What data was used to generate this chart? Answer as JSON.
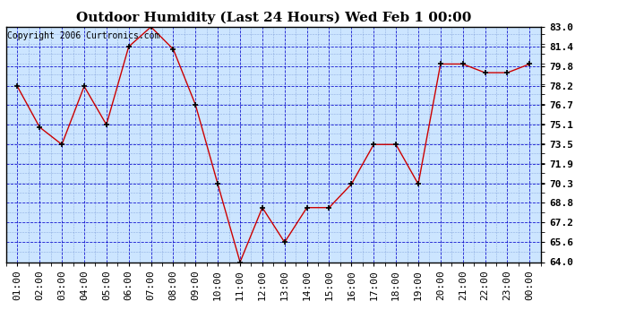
{
  "title": "Outdoor Humidity (Last 24 Hours) Wed Feb 1 00:00",
  "copyright": "Copyright 2006 Curtronics.com",
  "x_labels": [
    "01:00",
    "02:00",
    "03:00",
    "04:00",
    "05:00",
    "06:00",
    "07:00",
    "08:00",
    "09:00",
    "10:00",
    "11:00",
    "12:00",
    "13:00",
    "14:00",
    "15:00",
    "16:00",
    "17:00",
    "18:00",
    "19:00",
    "20:00",
    "21:00",
    "22:00",
    "23:00",
    "00:00"
  ],
  "y_values": [
    78.2,
    74.9,
    73.5,
    78.2,
    75.1,
    81.4,
    83.0,
    81.2,
    76.7,
    70.3,
    64.0,
    68.4,
    65.6,
    68.4,
    68.4,
    70.3,
    73.5,
    73.5,
    70.3,
    80.0,
    80.0,
    79.3,
    79.3,
    80.0
  ],
  "y_tick_values": [
    64.0,
    65.6,
    67.2,
    68.8,
    70.3,
    71.9,
    73.5,
    75.1,
    76.7,
    78.2,
    79.8,
    81.4,
    83.0
  ],
  "y_min": 64.0,
  "y_max": 83.0,
  "line_color": "#cc0000",
  "marker_color": "#000000",
  "bg_color": "#cce5ff",
  "grid_color_major": "#0000cc",
  "grid_color_minor": "#6688cc",
  "border_color": "#000000",
  "title_fontsize": 11,
  "copyright_fontsize": 7,
  "axis_label_fontsize": 8,
  "tick_fontsize": 8
}
